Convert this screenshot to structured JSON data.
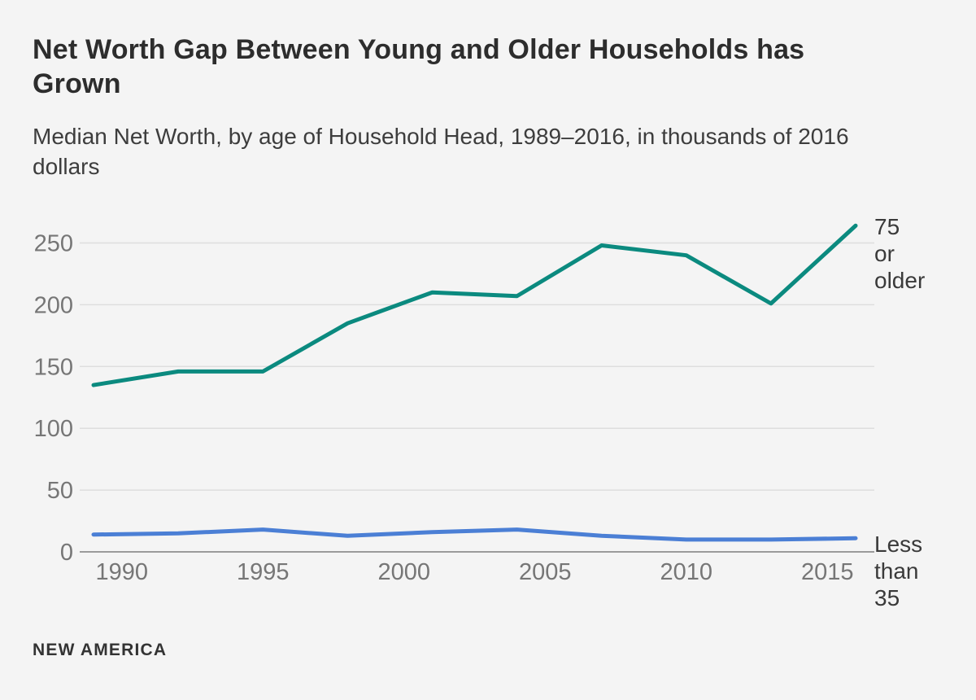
{
  "header": {
    "title_display": "Net Worth Gap Between Young and Older Households has\nGrown",
    "subtitle_display": "Median Net Worth, by age of Household Head, 1989–2016, in thousands of 2016\ndollars"
  },
  "footer": {
    "source": "NEW AMERICA"
  },
  "chart_data": {
    "type": "line",
    "title": "Net Worth Gap Between Young and Older Households has Grown",
    "subtitle": "Median Net Worth, by age of Household Head, 1989–2016, in thousands of 2016 dollars",
    "x": [
      1989,
      1992,
      1995,
      1998,
      2001,
      2004,
      2007,
      2010,
      2013,
      2016
    ],
    "x_ticks": [
      1990,
      1995,
      2000,
      2005,
      2010,
      2015
    ],
    "y_ticks": [
      0,
      50,
      100,
      150,
      200,
      250
    ],
    "xlim": [
      1989,
      2016
    ],
    "ylim": [
      0,
      275
    ],
    "grid": true,
    "legend_position": "right-end-labels",
    "series": [
      {
        "name": "75 or older",
        "end_label": "75\nor\nolder",
        "color": "#0b8a7f",
        "values": [
          135,
          146,
          146,
          185,
          210,
          207,
          248,
          240,
          201,
          264
        ]
      },
      {
        "name": "Less than 35",
        "end_label": "Less\nthan\n35",
        "color": "#4b7fd5",
        "values": [
          14,
          15,
          18,
          13,
          16,
          18,
          13,
          10,
          10,
          11
        ]
      }
    ],
    "colors": {
      "background": "#f4f4f4",
      "grid": "#dedede",
      "axis": "#9b9b9b",
      "tick_text": "#767676",
      "title_text": "#2d2d2d",
      "label_text": "#3a3a3a"
    }
  }
}
